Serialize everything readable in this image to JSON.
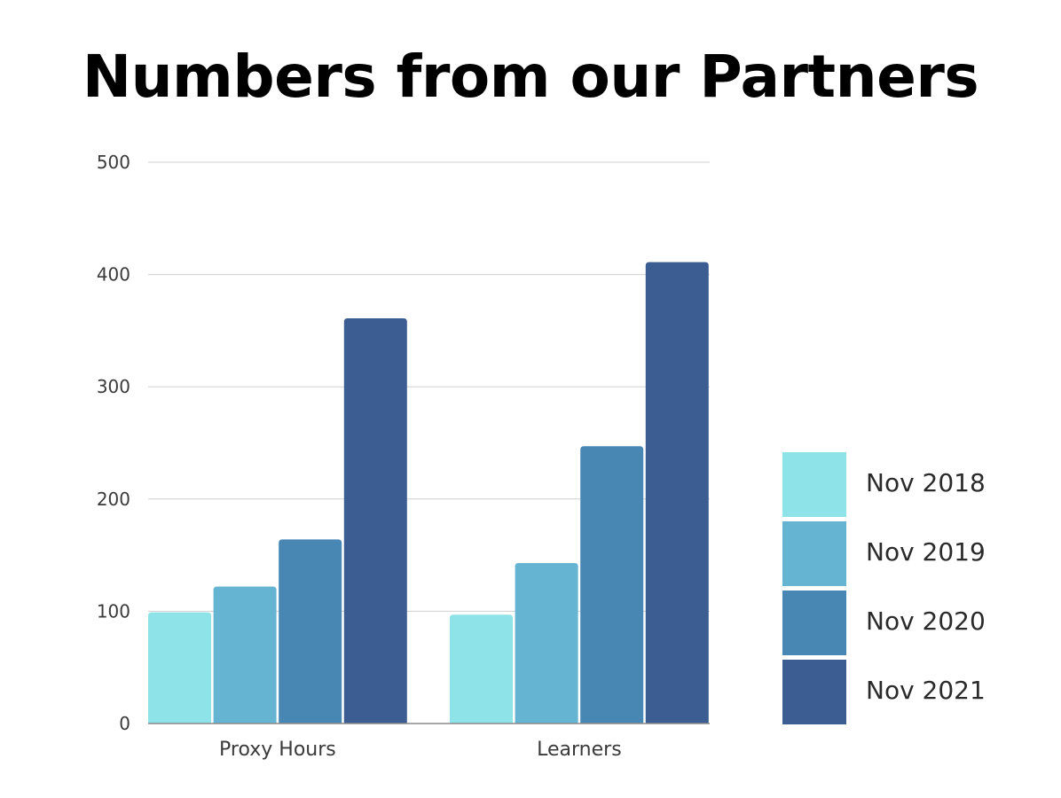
{
  "chart_data": {
    "type": "bar",
    "title": "Numbers from our Partners",
    "xlabel": "",
    "ylabel": "",
    "categories": [
      "Proxy Hours",
      "Learners"
    ],
    "ylim": [
      0,
      500
    ],
    "yticks": [
      0,
      100,
      200,
      300,
      400,
      500
    ],
    "grid": true,
    "legend_position": "bottom-right",
    "series": [
      {
        "name": "Nov 2018",
        "values": [
          99,
          97
        ],
        "color": "#8de3e8"
      },
      {
        "name": "Nov 2019",
        "values": [
          122,
          143
        ],
        "color": "#64b4d2"
      },
      {
        "name": "Nov 2020",
        "values": [
          164,
          247
        ],
        "color": "#4887b4"
      },
      {
        "name": "Nov 2021",
        "values": [
          361,
          411
        ],
        "color": "#3b5d91"
      }
    ]
  }
}
